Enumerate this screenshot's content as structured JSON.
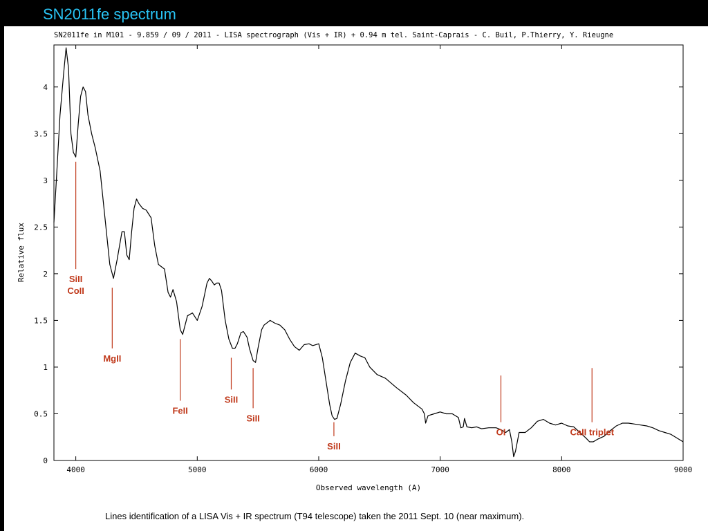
{
  "slide": {
    "title": "SN2011fe spectrum",
    "caption": "Lines identification of a LISA Vis + IR spectrum (T94 telescope) taken the 2011 Sept. 10 (near maximum).",
    "title_color": "#29c5f6",
    "annotation_color": "#c0391b"
  },
  "chart_data": {
    "type": "line",
    "title": "SN2011fe in M101  - 9.859 / 09 / 2011 - LISA spectrograph (Vis + IR) + 0.94 m tel. Saint-Caprais - C. Buil, P.Thierry, Y. Rieugne",
    "xlabel": "Observed wavelength (A)",
    "ylabel": "Relative flux",
    "xlim": [
      3820,
      9000
    ],
    "ylim": [
      0,
      4.45
    ],
    "xticks": [
      4000,
      5000,
      6000,
      7000,
      8000,
      9000
    ],
    "yticks": [
      0,
      0.5,
      1,
      1.5,
      2,
      2.5,
      3,
      3.5,
      4
    ],
    "ytick_labels": [
      "0",
      "0.5",
      "1",
      "1.5",
      "2",
      "2.5",
      "3",
      "3.5",
      "4"
    ],
    "grid": false,
    "series": [
      {
        "x": [
          3820,
          3840,
          3870,
          3900,
          3920,
          3940,
          3960,
          3980,
          4000,
          4020,
          4040,
          4060,
          4080,
          4100,
          4130,
          4160,
          4200,
          4240,
          4280,
          4310,
          4340,
          4360,
          4380,
          4400,
          4420,
          4440,
          4460,
          4480,
          4500,
          4520,
          4550,
          4580,
          4620,
          4650,
          4680,
          4700,
          4730,
          4760,
          4780,
          4800,
          4830,
          4860,
          4880,
          4920,
          4960,
          5000,
          5040,
          5080,
          5100,
          5120,
          5140,
          5160,
          5180,
          5200,
          5230,
          5260,
          5290,
          5310,
          5330,
          5360,
          5380,
          5410,
          5430,
          5460,
          5480,
          5500,
          5530,
          5550,
          5600,
          5640,
          5680,
          5720,
          5760,
          5800,
          5840,
          5880,
          5920,
          5950,
          6000,
          6030,
          6060,
          6090,
          6110,
          6130,
          6150,
          6180,
          6220,
          6260,
          6300,
          6340,
          6380,
          6420,
          6480,
          6550,
          6640,
          6720,
          6780,
          6820,
          6850,
          6870,
          6880,
          6900,
          6950,
          7000,
          7050,
          7100,
          7150,
          7170,
          7190,
          7200,
          7220,
          7260,
          7300,
          7340,
          7400,
          7460,
          7500,
          7540,
          7570,
          7590,
          7605,
          7620,
          7650,
          7700,
          7750,
          7800,
          7850,
          7900,
          7950,
          8000,
          8050,
          8100,
          8150,
          8200,
          8230,
          8260,
          8300,
          8350,
          8400,
          8450,
          8500,
          8550,
          8600,
          8650,
          8700,
          8750,
          8800,
          8850,
          8900,
          8950,
          9000
        ],
        "y": [
          2.55,
          3.0,
          3.7,
          4.15,
          4.42,
          4.2,
          3.5,
          3.3,
          3.25,
          3.6,
          3.9,
          4.0,
          3.95,
          3.7,
          3.5,
          3.35,
          3.1,
          2.6,
          2.1,
          1.95,
          2.15,
          2.3,
          2.45,
          2.45,
          2.2,
          2.15,
          2.45,
          2.7,
          2.8,
          2.75,
          2.7,
          2.68,
          2.6,
          2.3,
          2.1,
          2.08,
          2.05,
          1.8,
          1.75,
          1.83,
          1.7,
          1.4,
          1.35,
          1.55,
          1.58,
          1.5,
          1.65,
          1.9,
          1.95,
          1.92,
          1.88,
          1.9,
          1.9,
          1.82,
          1.5,
          1.3,
          1.2,
          1.2,
          1.25,
          1.37,
          1.38,
          1.32,
          1.2,
          1.07,
          1.05,
          1.2,
          1.4,
          1.45,
          1.5,
          1.47,
          1.45,
          1.4,
          1.3,
          1.22,
          1.18,
          1.24,
          1.25,
          1.23,
          1.25,
          1.1,
          0.85,
          0.6,
          0.48,
          0.44,
          0.45,
          0.6,
          0.85,
          1.05,
          1.15,
          1.12,
          1.1,
          1.0,
          0.92,
          0.88,
          0.78,
          0.7,
          0.62,
          0.58,
          0.55,
          0.5,
          0.4,
          0.48,
          0.5,
          0.52,
          0.5,
          0.5,
          0.46,
          0.35,
          0.36,
          0.45,
          0.36,
          0.35,
          0.36,
          0.34,
          0.35,
          0.35,
          0.33,
          0.3,
          0.33,
          0.2,
          0.04,
          0.1,
          0.3,
          0.3,
          0.35,
          0.42,
          0.44,
          0.4,
          0.38,
          0.4,
          0.37,
          0.36,
          0.3,
          0.24,
          0.2,
          0.2,
          0.23,
          0.26,
          0.32,
          0.37,
          0.4,
          0.4,
          0.39,
          0.38,
          0.37,
          0.35,
          0.32,
          0.3,
          0.28,
          0.24,
          0.2
        ]
      }
    ],
    "annotations": [
      {
        "label": "SiII",
        "label2": "CoII",
        "x": 4000,
        "line_y": [
          3.2,
          2.05
        ]
      },
      {
        "label": "MgII",
        "x": 4300,
        "line_y": [
          1.85,
          1.2
        ]
      },
      {
        "label": "FeII",
        "x": 4860,
        "line_y": [
          1.3,
          0.64
        ]
      },
      {
        "label": "SiII",
        "x": 5280,
        "line_y": [
          1.1,
          0.76
        ]
      },
      {
        "label": "SiII",
        "x": 5460,
        "line_y": [
          0.99,
          0.56
        ]
      },
      {
        "label": "SiII",
        "x": 6125,
        "line_y": [
          0.41,
          0.26
        ]
      },
      {
        "label": "OI",
        "x": 7500,
        "line_y": [
          0.91,
          0.41
        ]
      },
      {
        "label": "CaII triplet",
        "x": 8250,
        "line_y": [
          0.99,
          0.41
        ]
      }
    ]
  }
}
